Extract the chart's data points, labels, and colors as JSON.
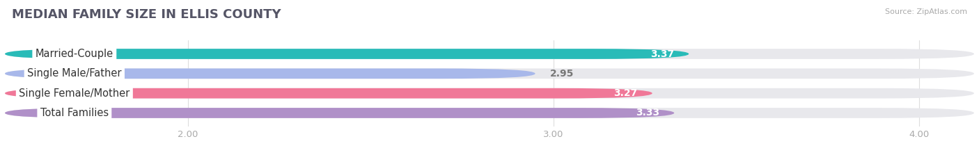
{
  "title": "MEDIAN FAMILY SIZE IN ELLIS COUNTY",
  "source": "Source: ZipAtlas.com",
  "categories": [
    "Married-Couple",
    "Single Male/Father",
    "Single Female/Mother",
    "Total Families"
  ],
  "values": [
    3.37,
    2.95,
    3.27,
    3.33
  ],
  "bar_colors": [
    "#29bbb8",
    "#a8b8ea",
    "#f07898",
    "#b090c8"
  ],
  "value_text_colors": [
    "white",
    "#777777",
    "white",
    "white"
  ],
  "background_color": "#ffffff",
  "bar_background_color": "#e8e8ec",
  "xlim": [
    1.5,
    4.15
  ],
  "xticks": [
    2.0,
    3.0,
    4.0
  ],
  "label_fontsize": 10.5,
  "value_fontsize": 10,
  "title_fontsize": 13,
  "bar_height": 0.52,
  "title_color": "#555566",
  "source_color": "#aaaaaa"
}
